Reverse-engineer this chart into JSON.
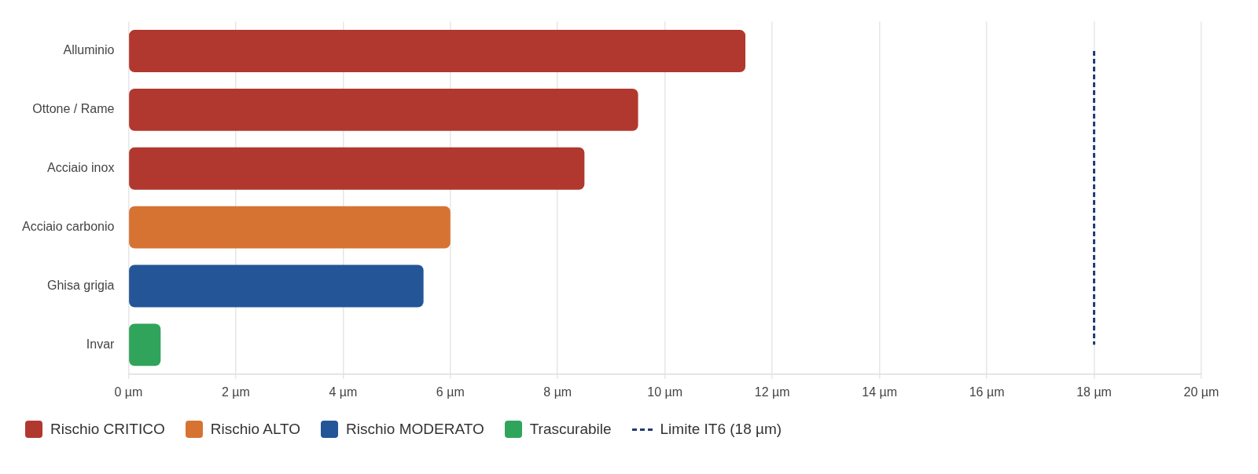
{
  "chart_data": {
    "type": "bar",
    "orientation": "horizontal",
    "stacked": true,
    "categories": [
      "Alluminio",
      "Ottone / Rame",
      "Acciaio inox",
      "Acciaio carbonio",
      "Ghisa grigia",
      "Invar"
    ],
    "series": [
      {
        "name": "Rischio CRITICO",
        "color": "#b1382f",
        "values": [
          11.5,
          9.5,
          8.5,
          null,
          null,
          null
        ]
      },
      {
        "name": "Rischio ALTO",
        "color": "#d67333",
        "values": [
          null,
          null,
          null,
          6,
          null,
          null
        ]
      },
      {
        "name": "Rischio MODERATO",
        "color": "#245597",
        "values": [
          null,
          null,
          null,
          null,
          5.5,
          null
        ]
      },
      {
        "name": "Trascurabile",
        "color": "#31a45b",
        "values": [
          null,
          null,
          null,
          null,
          null,
          0.6
        ]
      }
    ],
    "xlim": [
      0,
      20
    ],
    "xticks": [
      {
        "value": 0,
        "label": "0 µm"
      },
      {
        "value": 2,
        "label": "2 µm"
      },
      {
        "value": 4,
        "label": "4 µm"
      },
      {
        "value": 6,
        "label": "6 µm"
      },
      {
        "value": 8,
        "label": "8 µm"
      },
      {
        "value": 10,
        "label": "10 µm"
      },
      {
        "value": 12,
        "label": "12 µm"
      },
      {
        "value": 14,
        "label": "14 µm"
      },
      {
        "value": 16,
        "label": "16 µm"
      },
      {
        "value": 18,
        "label": "18 µm"
      },
      {
        "value": 20,
        "label": "20 µm"
      }
    ],
    "ref_lines": [
      {
        "axis": "x",
        "value": 18,
        "label": "Limite IT6 (18 µm)",
        "color": "#1f3c73",
        "line_style": "dashed"
      }
    ],
    "grid": "x",
    "legend": "bottom"
  }
}
